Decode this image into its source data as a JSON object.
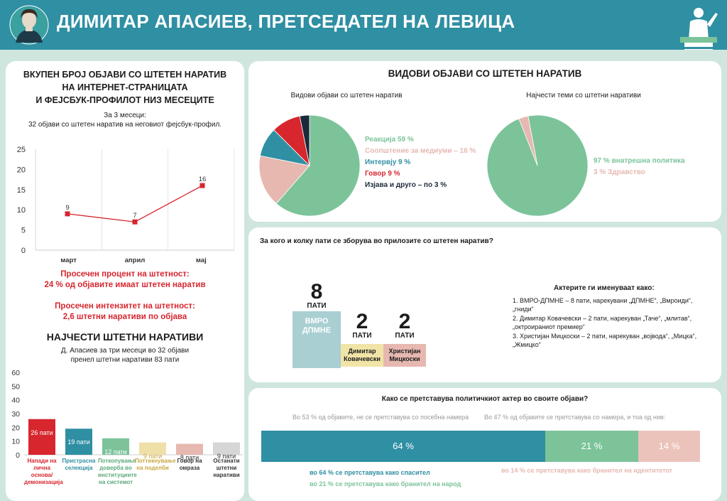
{
  "header": {
    "title": "ДИМИТАР АПАСИЕВ, ПРЕТСЕДАТЕЛ НА ЛЕВИЦА"
  },
  "left": {
    "title_lines": [
      "ВКУПЕН БРОЈ ОБЈАВИ СО ШТЕТЕН НАРАТИВ",
      "НА ИНТЕРНЕТ-СТРАНИЦАТА",
      "И ФЕЈСБУК-ПРОФИЛОТ НИЗ МЕСЕЦИТЕ"
    ],
    "subtitle_lines": [
      "За 3 месеци:",
      "32 објави со штетен наратив на неговиот фејсбук-профил."
    ],
    "avg_percent_lines": [
      "Просечен процент на штетност:",
      "24 % од објавите имаат штетен наратив"
    ],
    "avg_intensity_lines": [
      "Просечен интензитет на штетност:",
      "2,6 штетни наративи по објава"
    ],
    "narr_title": "НАЈЧЕСТИ ШТЕТНИ НАРАТИВИ",
    "narr_sub_lines": [
      "Д. Апасиев за три месеци во 32 објави",
      "пренел штетни наративи 83 пати"
    ]
  },
  "chart_data": [
    {
      "type": "line",
      "categories": [
        "март",
        "април",
        "мај"
      ],
      "values": [
        9,
        7,
        16
      ],
      "ylim": [
        0,
        25
      ],
      "yticks": [
        0,
        5,
        10,
        15,
        20,
        25
      ],
      "color": "#d7262e"
    },
    {
      "type": "bar",
      "categories": [
        "Напади на лична основа/ демонизација",
        "Пристрасна селекција",
        "Поткопување доверба во институциите на системот",
        "Поттикнување на поделби",
        "Говор на омраза",
        "Останати штетни наративи"
      ],
      "values": [
        26,
        19,
        12,
        9,
        8,
        9
      ],
      "labels": [
        "26 пати",
        "19 пати",
        "12 пати",
        "9 пати",
        "8 пати",
        "9 пати"
      ],
      "ylim": [
        0,
        60
      ],
      "yticks": [
        0,
        10,
        20,
        30,
        40,
        50,
        60
      ],
      "colors": [
        "#d7262e",
        "#2f8fa3",
        "#7cc39a",
        "#efe0a8",
        "#e6b8b0",
        "#d6d6d6"
      ]
    },
    {
      "type": "pie",
      "title": "Видови објави со штетен наратив",
      "slices": [
        {
          "label": "Реакција 59 %",
          "value": 59,
          "color": "#7cc39a"
        },
        {
          "label": "Соопштение за медиуми – 16 %",
          "value": 16,
          "color": "#e6b8b0"
        },
        {
          "label": "Интервју 9 %",
          "value": 9,
          "color": "#2f8fa3"
        },
        {
          "label": "Говор 9 %",
          "value": 9,
          "color": "#d7262e"
        },
        {
          "label": "Изјава и друго – по 3 %",
          "value": 3,
          "color": "#1b2a3a"
        }
      ]
    },
    {
      "type": "pie",
      "title": "Најчести теми со штетни наративи",
      "slices": [
        {
          "label": "97 % внатрешна политика",
          "value": 97,
          "color": "#7cc39a"
        },
        {
          "label": "3 % Здравство",
          "value": 3,
          "color": "#e6b8b0"
        }
      ]
    },
    {
      "type": "bar",
      "categories": [
        "ВМРО ДПМНЕ",
        "Димитар Ковачевски",
        "Христијан Мицкоски"
      ],
      "values": [
        8,
        2,
        2
      ],
      "unit": "ПАТИ",
      "colors": [
        "#a9cfd3",
        "#f1e4a7",
        "#e6b8b0"
      ]
    },
    {
      "type": "bar",
      "orientation": "stacked-horizontal",
      "values": [
        64,
        21,
        14
      ],
      "labels": [
        "64 %",
        "21 %",
        "14 %"
      ],
      "colors": [
        "#2f8fa3",
        "#7cc39a",
        "#ecc3bb"
      ]
    }
  ],
  "types": {
    "title": "ВИДОВИ ОБЈАВИ СО ШТЕТЕН НАРАТИВ"
  },
  "actors": {
    "question": "За кого и колку пати се зборува во прилозите со штетен наратив?",
    "named_title": "Актерите ги именуваат како:",
    "named_items": [
      "1. ВМРО-ДПМНЕ – 8 пати, нарекувани „ДПМНЕ“, „Вмроиди“, „гниди“",
      "2. Димитар Ковачевски – 2 пати, нарекуван „Таче“, „млитав“, „октроираниот премиер“",
      "3. Христијан Мицкоски – 2 пати, нарекуван „војвода“, „Мицка“, „Жмицко“"
    ]
  },
  "present": {
    "question": "Како се претставува политичкиот актер во своите објави?",
    "left_note": "Во 53 % од објавите, не се претставува со посебна намера",
    "right_note": "Во 47 % од објавите се претставува со намера, и тоа од нив:",
    "leg1": "во 64 % се претставува како спасител",
    "leg2": "во 21 % се претставува како бранител на народ",
    "leg3": "во 14 % се претставува како бранител на идентитетот"
  }
}
